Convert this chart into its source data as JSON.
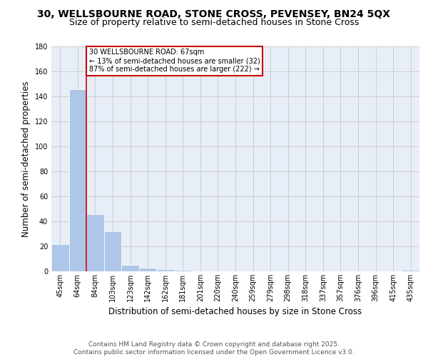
{
  "title_line1": "30, WELLSBOURNE ROAD, STONE CROSS, PEVENSEY, BN24 5QX",
  "title_line2": "Size of property relative to semi-detached houses in Stone Cross",
  "xlabel": "Distribution of semi-detached houses by size in Stone Cross",
  "ylabel": "Number of semi-detached properties",
  "footer_line1": "Contains HM Land Registry data © Crown copyright and database right 2025.",
  "footer_line2": "Contains public sector information licensed under the Open Government Licence v3.0.",
  "categories": [
    "45sqm",
    "64sqm",
    "84sqm",
    "103sqm",
    "123sqm",
    "142sqm",
    "162sqm",
    "181sqm",
    "201sqm",
    "220sqm",
    "240sqm",
    "259sqm",
    "279sqm",
    "298sqm",
    "318sqm",
    "337sqm",
    "357sqm",
    "376sqm",
    "396sqm",
    "415sqm",
    "435sqm"
  ],
  "values": [
    22,
    146,
    46,
    32,
    5,
    3,
    2,
    1,
    0,
    0,
    0,
    0,
    0,
    0,
    0,
    0,
    0,
    0,
    0,
    0,
    1
  ],
  "bar_color": "#aec6e8",
  "vline_x": 1.5,
  "vline_color": "#cc0000",
  "annotation_text": "30 WELLSBOURNE ROAD: 67sqm\n← 13% of semi-detached houses are smaller (32)\n87% of semi-detached houses are larger (222) →",
  "annotation_box_facecolor": "#ffffff",
  "annotation_box_edgecolor": "#cc0000",
  "ylim": [
    0,
    180
  ],
  "yticks": [
    0,
    20,
    40,
    60,
    80,
    100,
    120,
    140,
    160,
    180
  ],
  "grid_color": "#cccccc",
  "background_color": "#e8eef8",
  "title_fontsize": 10,
  "subtitle_fontsize": 9,
  "axis_label_fontsize": 8.5,
  "tick_fontsize": 7,
  "annotation_fontsize": 7,
  "footer_fontsize": 6.5
}
